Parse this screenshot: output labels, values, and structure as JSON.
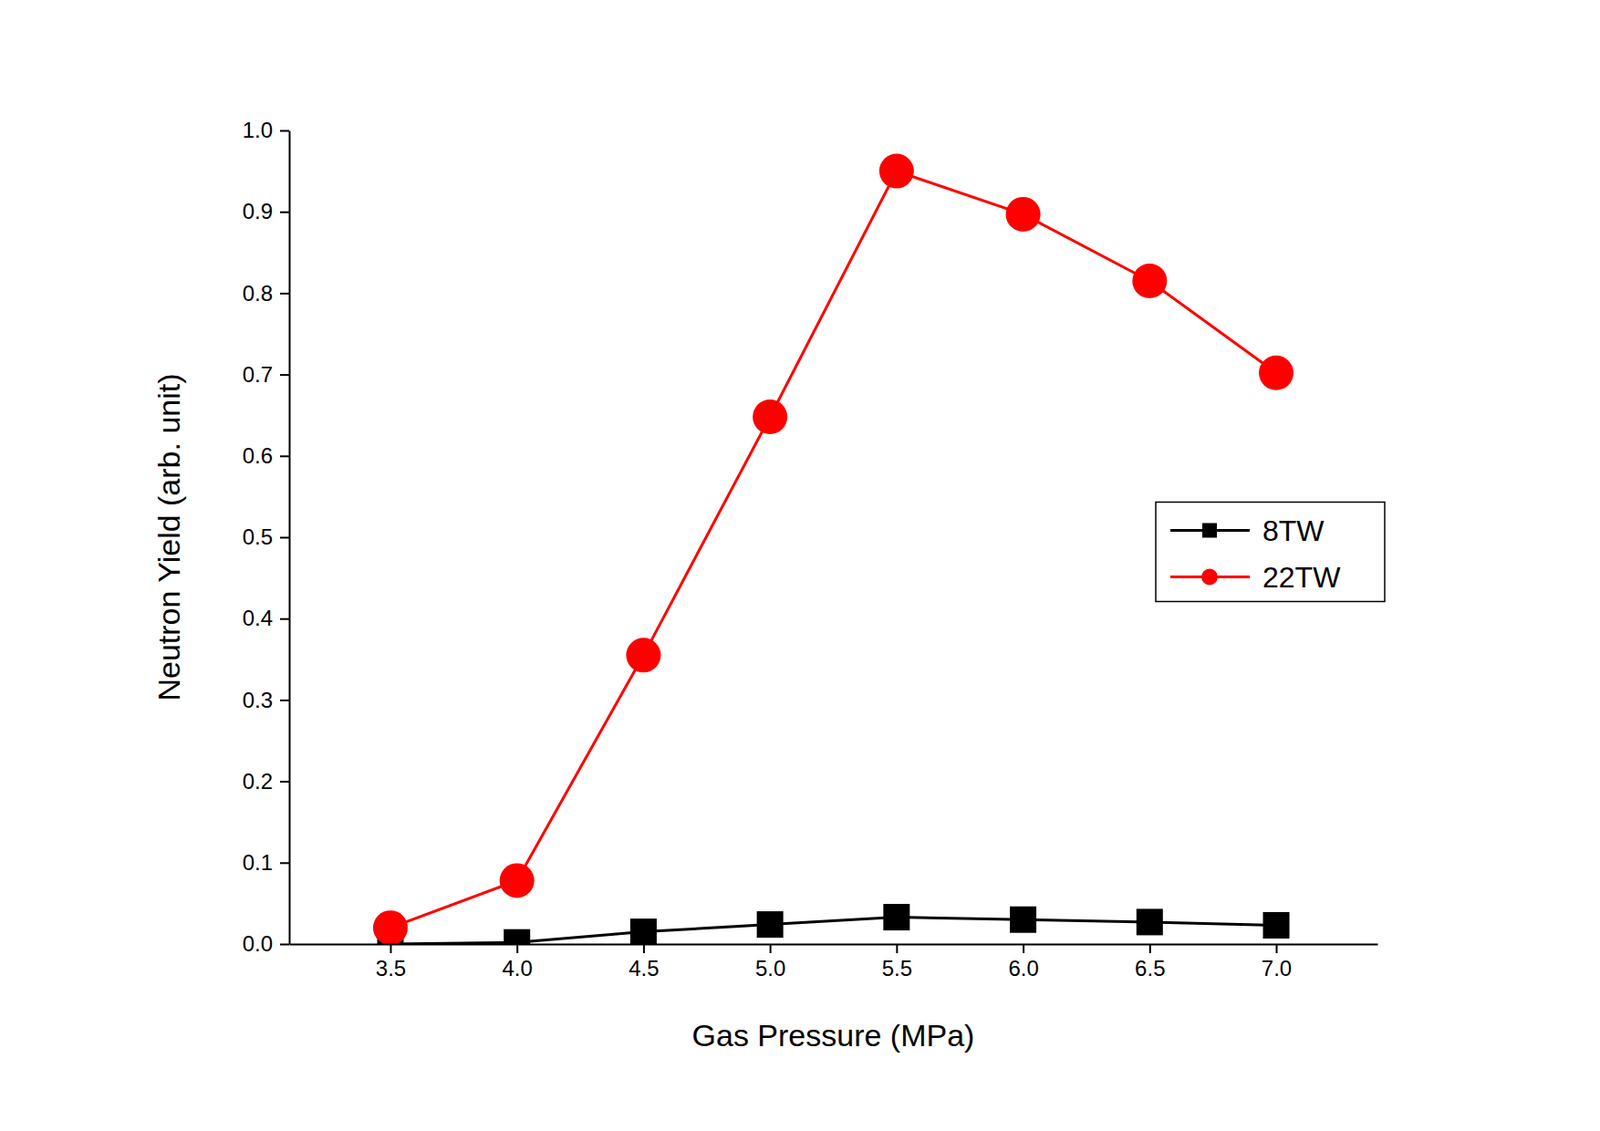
{
  "chart_data": {
    "type": "line",
    "x_label": "Gas Pressure (MPa)",
    "y_label": "Neutron Yield (arb. unit)",
    "x": [
      3.5,
      4.0,
      4.5,
      5.0,
      5.5,
      6.0,
      6.5,
      7.0
    ],
    "series": [
      {
        "name": "8TW",
        "color": "#000000",
        "marker": "square",
        "line_style": "solid",
        "values": [
          0.0,
          0.002,
          0.015,
          0.024,
          0.033,
          0.03,
          0.027,
          0.023
        ]
      },
      {
        "name": "22TW",
        "color": "#ff0000",
        "marker": "circle",
        "line_style": "solid",
        "values": [
          0.02,
          0.078,
          0.355,
          0.648,
          0.95,
          0.897,
          0.815,
          0.702
        ]
      }
    ],
    "xlim": [
      3.1,
      7.4
    ],
    "xticks": [
      3.5,
      {
        "value": 4.0,
        "label": "4.0"
      },
      4.5,
      {
        "value": 5.0,
        "label": "5.0"
      },
      5.5,
      {
        "value": 6.0,
        "label": "6.0"
      },
      6.5,
      {
        "value": 7.0,
        "label": "7.0"
      }
    ],
    "ylim": [
      0,
      1.0
    ],
    "yticks": [
      {
        "value": 0,
        "label": "0.0"
      },
      0.1,
      0.2,
      0.3,
      0.4,
      0.5,
      0.6,
      0.7,
      0.8,
      0.9,
      {
        "value": 1.0,
        "label": "1.0"
      }
    ],
    "grid": false,
    "legend": "right"
  }
}
